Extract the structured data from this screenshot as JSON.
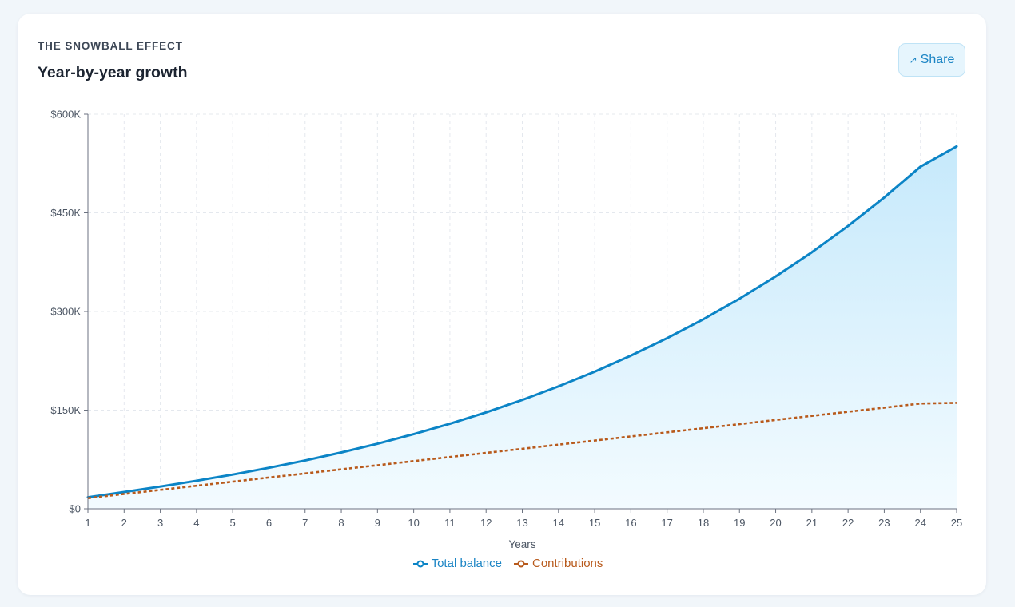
{
  "header": {
    "eyebrow": "THE SNOWBALL EFFECT",
    "title": "Year-by-year growth",
    "share_label": "Share",
    "share_icon": "↗"
  },
  "colors": {
    "balance": "#0b84c6",
    "contributions": "#b85a1c",
    "area_top": "#c6e9fb",
    "area_bottom": "#f3fbff"
  },
  "chart_data": {
    "type": "area",
    "xlabel": "Years",
    "ylabel": "",
    "x": [
      1,
      2,
      3,
      4,
      5,
      6,
      7,
      8,
      9,
      10,
      11,
      12,
      13,
      14,
      15,
      16,
      17,
      18,
      19,
      20,
      21,
      22,
      23,
      24,
      25
    ],
    "ylim": [
      0,
      600000
    ],
    "yticks": [
      0,
      150000,
      300000,
      450000,
      600000
    ],
    "ytick_labels": [
      "$0",
      "$150K",
      "$300K",
      "$450K",
      "$600K"
    ],
    "grid": true,
    "legend_position": "bottom-center",
    "series": [
      {
        "name": "Total balance",
        "style": "solid-filled",
        "values": [
          17500,
          25500,
          33800,
          42600,
          52000,
          62300,
          73400,
          85600,
          98900,
          113500,
          129300,
          146600,
          165500,
          186100,
          208500,
          232900,
          259400,
          288100,
          319400,
          353300,
          390100,
          430000,
          473300,
          520200,
          551000
        ]
      },
      {
        "name": "Contributions",
        "style": "dotted",
        "values": [
          16200,
          22500,
          28700,
          35000,
          41200,
          47500,
          53700,
          60000,
          66200,
          72500,
          78700,
          85000,
          91200,
          97500,
          103700,
          110000,
          116200,
          122500,
          128700,
          135000,
          141200,
          147500,
          153700,
          160000,
          161000
        ]
      }
    ]
  }
}
